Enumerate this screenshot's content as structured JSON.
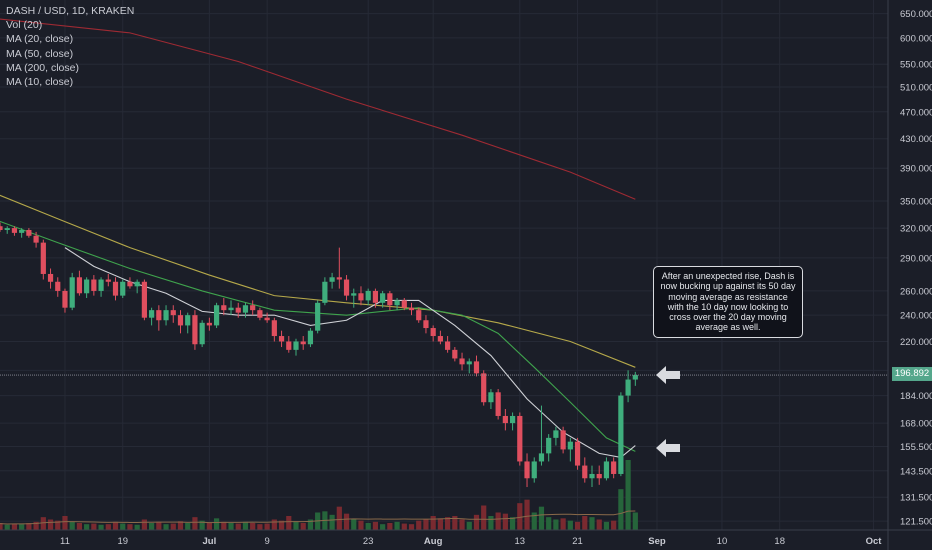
{
  "header": {
    "title": "DASH / USD, 1D, KRAKEN",
    "indicators": [
      "Vol (20)",
      "MA (20, close)",
      "MA (50, close)",
      "MA (200, close)",
      "MA (10, close)"
    ]
  },
  "annotation": {
    "text": "After an unexpected rise, Dash is now bucking up against its 50 day moving average as resistance with the 10 day now looking to cross over the 20 day moving average as well."
  },
  "last_price_label": "196.892",
  "colors": {
    "background": "#1b1e28",
    "grid": "#262a36",
    "up": "#3fae7d",
    "down": "#e04f5f",
    "volume_up": "#26653b",
    "volume_down": "#7a2a30",
    "ma10": "#cfd1d6",
    "ma20": "#3fa34d",
    "ma50": "#b5a84a",
    "ma200": "#9e2a33",
    "arrow": "#d9dbe0"
  },
  "icons": [
    "left-arrow-icon",
    "left-arrow-icon"
  ],
  "chart_data": {
    "type": "candlestick",
    "title": "DASH / USD, 1D, KRAKEN",
    "scale": "log",
    "ylim": [
      118,
      680
    ],
    "y_ticks": [
      650,
      600,
      550,
      510,
      470,
      430,
      390,
      350,
      320,
      290,
      260,
      240,
      220,
      200,
      184,
      168,
      155.5,
      143.5,
      131.5,
      121.5
    ],
    "y_tick_labels": [
      "650.000",
      "600.000",
      "550.000",
      "510.000",
      "470.000",
      "430.000",
      "390.000",
      "350.000",
      "320.000",
      "290.000",
      "260.000",
      "240.000",
      "220.000",
      "200.000",
      "184.000",
      "168.000",
      "155.500",
      "143.500",
      "131.500",
      "121.500"
    ],
    "x_range": [
      "2018-06-02",
      "2018-10-03"
    ],
    "x_ticks": [
      {
        "date": "2018-06-11",
        "label": "11"
      },
      {
        "date": "2018-06-19",
        "label": "19"
      },
      {
        "date": "2018-07-01",
        "label": "Jul"
      },
      {
        "date": "2018-07-09",
        "label": "9"
      },
      {
        "date": "2018-07-23",
        "label": "23"
      },
      {
        "date": "2018-08-01",
        "label": "Aug"
      },
      {
        "date": "2018-08-13",
        "label": "13"
      },
      {
        "date": "2018-08-21",
        "label": "21"
      },
      {
        "date": "2018-09-01",
        "label": "Sep"
      },
      {
        "date": "2018-09-10",
        "label": "10"
      },
      {
        "date": "2018-09-18",
        "label": "18"
      },
      {
        "date": "2018-10-01",
        "label": "Oct"
      }
    ],
    "last_price": 196.892,
    "candles": [
      {
        "date": "2018-06-01",
        "o": 318,
        "h": 330,
        "l": 312,
        "c": 322
      },
      {
        "date": "2018-06-02",
        "o": 322,
        "h": 326,
        "l": 316,
        "c": 318
      },
      {
        "date": "2018-06-03",
        "o": 318,
        "h": 322,
        "l": 314,
        "c": 320
      },
      {
        "date": "2018-06-04",
        "o": 320,
        "h": 322,
        "l": 312,
        "c": 315
      },
      {
        "date": "2018-06-05",
        "o": 315,
        "h": 320,
        "l": 310,
        "c": 318
      },
      {
        "date": "2018-06-06",
        "o": 318,
        "h": 320,
        "l": 310,
        "c": 312
      },
      {
        "date": "2018-06-07",
        "o": 312,
        "h": 316,
        "l": 300,
        "c": 305
      },
      {
        "date": "2018-06-08",
        "o": 305,
        "h": 308,
        "l": 270,
        "c": 275
      },
      {
        "date": "2018-06-09",
        "o": 275,
        "h": 280,
        "l": 262,
        "c": 268
      },
      {
        "date": "2018-06-10",
        "o": 268,
        "h": 272,
        "l": 255,
        "c": 260
      },
      {
        "date": "2018-06-11",
        "o": 260,
        "h": 262,
        "l": 242,
        "c": 246
      },
      {
        "date": "2018-06-12",
        "o": 246,
        "h": 276,
        "l": 244,
        "c": 272
      },
      {
        "date": "2018-06-13",
        "o": 272,
        "h": 278,
        "l": 256,
        "c": 258
      },
      {
        "date": "2018-06-14",
        "o": 258,
        "h": 272,
        "l": 254,
        "c": 270
      },
      {
        "date": "2018-06-15",
        "o": 270,
        "h": 274,
        "l": 256,
        "c": 260
      },
      {
        "date": "2018-06-16",
        "o": 260,
        "h": 272,
        "l": 255,
        "c": 270
      },
      {
        "date": "2018-06-17",
        "o": 270,
        "h": 275,
        "l": 264,
        "c": 268
      },
      {
        "date": "2018-06-18",
        "o": 268,
        "h": 272,
        "l": 252,
        "c": 256
      },
      {
        "date": "2018-06-19",
        "o": 256,
        "h": 270,
        "l": 254,
        "c": 268
      },
      {
        "date": "2018-06-20",
        "o": 268,
        "h": 272,
        "l": 262,
        "c": 264
      },
      {
        "date": "2018-06-21",
        "o": 264,
        "h": 270,
        "l": 258,
        "c": 268
      },
      {
        "date": "2018-06-22",
        "o": 268,
        "h": 270,
        "l": 236,
        "c": 238
      },
      {
        "date": "2018-06-23",
        "o": 238,
        "h": 246,
        "l": 232,
        "c": 244
      },
      {
        "date": "2018-06-24",
        "o": 244,
        "h": 248,
        "l": 228,
        "c": 236
      },
      {
        "date": "2018-06-25",
        "o": 236,
        "h": 248,
        "l": 232,
        "c": 244
      },
      {
        "date": "2018-06-26",
        "o": 244,
        "h": 248,
        "l": 234,
        "c": 240
      },
      {
        "date": "2018-06-27",
        "o": 240,
        "h": 244,
        "l": 226,
        "c": 232
      },
      {
        "date": "2018-06-28",
        "o": 232,
        "h": 242,
        "l": 226,
        "c": 240
      },
      {
        "date": "2018-06-29",
        "o": 240,
        "h": 244,
        "l": 214,
        "c": 218
      },
      {
        "date": "2018-06-30",
        "o": 218,
        "h": 236,
        "l": 216,
        "c": 234
      },
      {
        "date": "2018-07-01",
        "o": 234,
        "h": 238,
        "l": 228,
        "c": 232
      },
      {
        "date": "2018-07-02",
        "o": 232,
        "h": 250,
        "l": 230,
        "c": 248
      },
      {
        "date": "2018-07-03",
        "o": 248,
        "h": 254,
        "l": 240,
        "c": 244
      },
      {
        "date": "2018-07-04",
        "o": 244,
        "h": 252,
        "l": 240,
        "c": 246
      },
      {
        "date": "2018-07-05",
        "o": 246,
        "h": 250,
        "l": 238,
        "c": 242
      },
      {
        "date": "2018-07-06",
        "o": 242,
        "h": 250,
        "l": 238,
        "c": 248
      },
      {
        "date": "2018-07-07",
        "o": 248,
        "h": 252,
        "l": 240,
        "c": 244
      },
      {
        "date": "2018-07-08",
        "o": 244,
        "h": 246,
        "l": 236,
        "c": 238
      },
      {
        "date": "2018-07-09",
        "o": 238,
        "h": 242,
        "l": 234,
        "c": 236
      },
      {
        "date": "2018-07-10",
        "o": 236,
        "h": 238,
        "l": 220,
        "c": 224
      },
      {
        "date": "2018-07-11",
        "o": 224,
        "h": 228,
        "l": 216,
        "c": 220
      },
      {
        "date": "2018-07-12",
        "o": 220,
        "h": 224,
        "l": 212,
        "c": 214
      },
      {
        "date": "2018-07-13",
        "o": 214,
        "h": 222,
        "l": 210,
        "c": 220
      },
      {
        "date": "2018-07-14",
        "o": 220,
        "h": 224,
        "l": 214,
        "c": 218
      },
      {
        "date": "2018-07-15",
        "o": 218,
        "h": 230,
        "l": 216,
        "c": 228
      },
      {
        "date": "2018-07-16",
        "o": 228,
        "h": 252,
        "l": 226,
        "c": 250
      },
      {
        "date": "2018-07-17",
        "o": 250,
        "h": 272,
        "l": 248,
        "c": 268
      },
      {
        "date": "2018-07-18",
        "o": 268,
        "h": 276,
        "l": 262,
        "c": 272
      },
      {
        "date": "2018-07-19",
        "o": 272,
        "h": 300,
        "l": 262,
        "c": 270
      },
      {
        "date": "2018-07-20",
        "o": 270,
        "h": 274,
        "l": 252,
        "c": 256
      },
      {
        "date": "2018-07-21",
        "o": 256,
        "h": 262,
        "l": 246,
        "c": 258
      },
      {
        "date": "2018-07-22",
        "o": 258,
        "h": 264,
        "l": 248,
        "c": 252
      },
      {
        "date": "2018-07-23",
        "o": 252,
        "h": 262,
        "l": 248,
        "c": 260
      },
      {
        "date": "2018-07-24",
        "o": 260,
        "h": 262,
        "l": 246,
        "c": 250
      },
      {
        "date": "2018-07-25",
        "o": 250,
        "h": 260,
        "l": 246,
        "c": 258
      },
      {
        "date": "2018-07-26",
        "o": 258,
        "h": 260,
        "l": 244,
        "c": 248
      },
      {
        "date": "2018-07-27",
        "o": 248,
        "h": 254,
        "l": 244,
        "c": 252
      },
      {
        "date": "2018-07-28",
        "o": 252,
        "h": 254,
        "l": 244,
        "c": 246
      },
      {
        "date": "2018-07-29",
        "o": 246,
        "h": 250,
        "l": 240,
        "c": 244
      },
      {
        "date": "2018-07-30",
        "o": 244,
        "h": 246,
        "l": 234,
        "c": 236
      },
      {
        "date": "2018-07-31",
        "o": 236,
        "h": 240,
        "l": 226,
        "c": 230
      },
      {
        "date": "2018-08-01",
        "o": 230,
        "h": 232,
        "l": 220,
        "c": 224
      },
      {
        "date": "2018-08-02",
        "o": 224,
        "h": 228,
        "l": 218,
        "c": 220
      },
      {
        "date": "2018-08-03",
        "o": 220,
        "h": 224,
        "l": 212,
        "c": 214
      },
      {
        "date": "2018-08-04",
        "o": 214,
        "h": 216,
        "l": 206,
        "c": 208
      },
      {
        "date": "2018-08-05",
        "o": 208,
        "h": 212,
        "l": 200,
        "c": 204
      },
      {
        "date": "2018-08-06",
        "o": 204,
        "h": 208,
        "l": 198,
        "c": 206
      },
      {
        "date": "2018-08-07",
        "o": 206,
        "h": 210,
        "l": 196,
        "c": 198
      },
      {
        "date": "2018-08-08",
        "o": 198,
        "h": 200,
        "l": 178,
        "c": 180
      },
      {
        "date": "2018-08-09",
        "o": 180,
        "h": 188,
        "l": 176,
        "c": 186
      },
      {
        "date": "2018-08-10",
        "o": 186,
        "h": 188,
        "l": 170,
        "c": 172
      },
      {
        "date": "2018-08-11",
        "o": 172,
        "h": 176,
        "l": 164,
        "c": 168
      },
      {
        "date": "2018-08-12",
        "o": 168,
        "h": 174,
        "l": 164,
        "c": 172
      },
      {
        "date": "2018-08-13",
        "o": 172,
        "h": 174,
        "l": 146,
        "c": 148
      },
      {
        "date": "2018-08-14",
        "o": 148,
        "h": 152,
        "l": 136,
        "c": 140
      },
      {
        "date": "2018-08-15",
        "o": 140,
        "h": 150,
        "l": 138,
        "c": 148
      },
      {
        "date": "2018-08-16",
        "o": 148,
        "h": 178,
        "l": 146,
        "c": 152
      },
      {
        "date": "2018-08-17",
        "o": 152,
        "h": 162,
        "l": 148,
        "c": 160
      },
      {
        "date": "2018-08-18",
        "o": 160,
        "h": 166,
        "l": 156,
        "c": 164
      },
      {
        "date": "2018-08-19",
        "o": 164,
        "h": 166,
        "l": 152,
        "c": 154
      },
      {
        "date": "2018-08-20",
        "o": 154,
        "h": 160,
        "l": 148,
        "c": 158
      },
      {
        "date": "2018-08-21",
        "o": 158,
        "h": 160,
        "l": 144,
        "c": 146
      },
      {
        "date": "2018-08-22",
        "o": 146,
        "h": 150,
        "l": 138,
        "c": 140
      },
      {
        "date": "2018-08-23",
        "o": 140,
        "h": 146,
        "l": 136,
        "c": 142
      },
      {
        "date": "2018-08-24",
        "o": 142,
        "h": 146,
        "l": 137,
        "c": 140
      },
      {
        "date": "2018-08-25",
        "o": 140,
        "h": 150,
        "l": 139,
        "c": 148
      },
      {
        "date": "2018-08-26",
        "o": 148,
        "h": 150,
        "l": 140,
        "c": 142
      },
      {
        "date": "2018-08-27",
        "o": 142,
        "h": 186,
        "l": 141,
        "c": 184
      },
      {
        "date": "2018-08-28",
        "o": 184,
        "h": 200,
        "l": 180,
        "c": 194
      },
      {
        "date": "2018-08-29",
        "o": 194,
        "h": 199,
        "l": 190,
        "c": 196.892
      }
    ],
    "volume_bars": [
      10,
      12,
      9,
      11,
      10,
      12,
      14,
      22,
      18,
      16,
      24,
      14,
      12,
      10,
      11,
      9,
      10,
      14,
      11,
      10,
      9,
      18,
      12,
      14,
      10,
      11,
      15,
      12,
      22,
      16,
      12,
      20,
      14,
      12,
      11,
      14,
      12,
      10,
      11,
      18,
      16,
      24,
      14,
      12,
      18,
      30,
      32,
      26,
      40,
      28,
      18,
      16,
      12,
      14,
      10,
      12,
      14,
      11,
      10,
      16,
      18,
      24,
      20,
      22,
      24,
      18,
      14,
      26,
      42,
      24,
      30,
      28,
      22,
      46,
      52,
      30,
      40,
      22,
      18,
      20,
      16,
      14,
      24,
      22,
      18,
      14,
      16,
      70,
      120,
      30
    ],
    "ma10": [
      {
        "date": "2018-06-11",
        "v": 300
      },
      {
        "date": "2018-06-15",
        "v": 282
      },
      {
        "date": "2018-06-20",
        "v": 268
      },
      {
        "date": "2018-06-25",
        "v": 258
      },
      {
        "date": "2018-06-30",
        "v": 243
      },
      {
        "date": "2018-07-05",
        "v": 240
      },
      {
        "date": "2018-07-10",
        "v": 240
      },
      {
        "date": "2018-07-15",
        "v": 232
      },
      {
        "date": "2018-07-20",
        "v": 236
      },
      {
        "date": "2018-07-25",
        "v": 252
      },
      {
        "date": "2018-07-30",
        "v": 252
      },
      {
        "date": "2018-08-04",
        "v": 232
      },
      {
        "date": "2018-08-09",
        "v": 210
      },
      {
        "date": "2018-08-14",
        "v": 182
      },
      {
        "date": "2018-08-19",
        "v": 163
      },
      {
        "date": "2018-08-24",
        "v": 152
      },
      {
        "date": "2018-08-27",
        "v": 150
      },
      {
        "date": "2018-08-29",
        "v": 156
      }
    ],
    "ma20": [
      {
        "date": "2018-06-01",
        "v": 330
      },
      {
        "date": "2018-06-10",
        "v": 305
      },
      {
        "date": "2018-06-20",
        "v": 280
      },
      {
        "date": "2018-06-30",
        "v": 260
      },
      {
        "date": "2018-07-10",
        "v": 244
      },
      {
        "date": "2018-07-20",
        "v": 240
      },
      {
        "date": "2018-07-30",
        "v": 246
      },
      {
        "date": "2018-08-05",
        "v": 240
      },
      {
        "date": "2018-08-10",
        "v": 226
      },
      {
        "date": "2018-08-15",
        "v": 202
      },
      {
        "date": "2018-08-20",
        "v": 180
      },
      {
        "date": "2018-08-25",
        "v": 160
      },
      {
        "date": "2018-08-29",
        "v": 153
      }
    ],
    "ma50": [
      {
        "date": "2018-06-01",
        "v": 360
      },
      {
        "date": "2018-06-10",
        "v": 330
      },
      {
        "date": "2018-06-20",
        "v": 300
      },
      {
        "date": "2018-07-01",
        "v": 274
      },
      {
        "date": "2018-07-10",
        "v": 256
      },
      {
        "date": "2018-07-20",
        "v": 250
      },
      {
        "date": "2018-08-01",
        "v": 244
      },
      {
        "date": "2018-08-10",
        "v": 234
      },
      {
        "date": "2018-08-20",
        "v": 220
      },
      {
        "date": "2018-08-29",
        "v": 202
      }
    ],
    "ma200": [
      {
        "date": "2018-06-01",
        "v": 640
      },
      {
        "date": "2018-06-20",
        "v": 610
      },
      {
        "date": "2018-07-05",
        "v": 555
      },
      {
        "date": "2018-07-20",
        "v": 490
      },
      {
        "date": "2018-08-05",
        "v": 435
      },
      {
        "date": "2018-08-20",
        "v": 385
      },
      {
        "date": "2018-08-29",
        "v": 352
      }
    ]
  }
}
